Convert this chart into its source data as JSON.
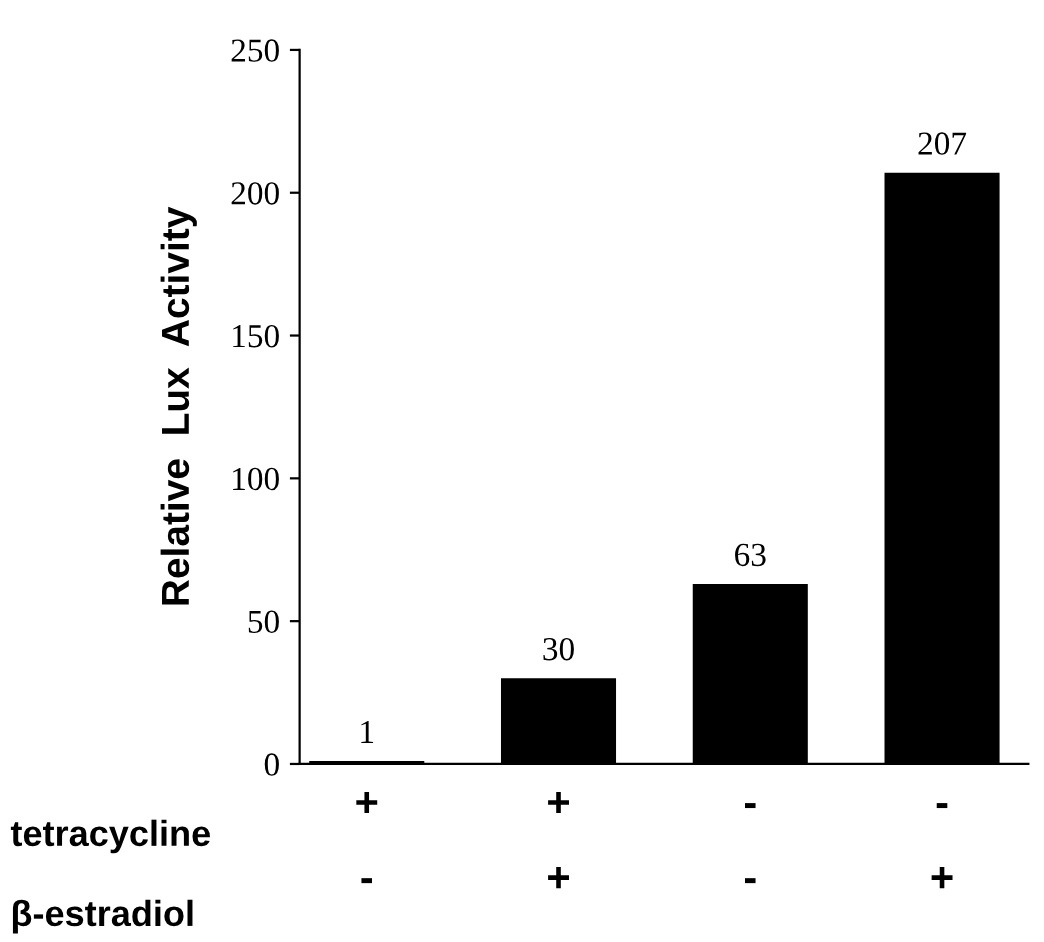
{
  "chart_data": {
    "type": "bar",
    "ylabel": "Relative  Lux  Activity",
    "categories": [
      "+\n-",
      "+\n+",
      "-\n-",
      "-\n+"
    ],
    "values": [
      1,
      30,
      63,
      207
    ],
    "color": "#000000",
    "ylim": [
      0,
      250
    ],
    "yticks": [
      0,
      50,
      100,
      150,
      200,
      250
    ],
    "data_labels": true,
    "grid": false,
    "legend": false,
    "annotations": [
      "tetracycline",
      "β-estradiol"
    ]
  }
}
